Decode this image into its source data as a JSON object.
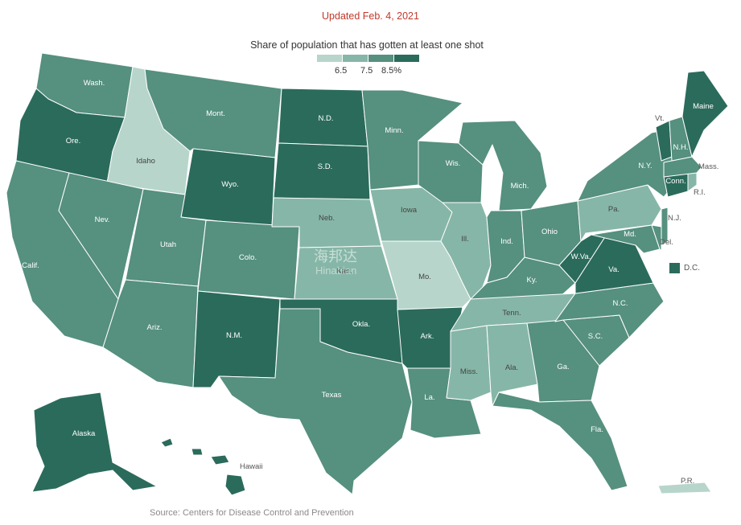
{
  "header": {
    "updated": "Updated Feb. 4, 2021",
    "legend_title": "Share of population that has gotten at least one shot",
    "legend_ticks": [
      "6.5",
      "7.5",
      "8.5%"
    ]
  },
  "colors": {
    "bin1": "#b7d5cb",
    "bin2": "#86b6a7",
    "bin3": "#56907f",
    "bin4": "#2b6b5b",
    "border": "#ffffff",
    "title": "#c0392b"
  },
  "states": [
    {
      "id": "wa",
      "label": "Wash.",
      "bin": 3
    },
    {
      "id": "or",
      "label": "Ore.",
      "bin": 4
    },
    {
      "id": "ca",
      "label": "Calif.",
      "bin": 3
    },
    {
      "id": "id",
      "label": "Idaho",
      "bin": 1
    },
    {
      "id": "nv",
      "label": "Nev.",
      "bin": 3
    },
    {
      "id": "mt",
      "label": "Mont.",
      "bin": 3
    },
    {
      "id": "wy",
      "label": "Wyo.",
      "bin": 4
    },
    {
      "id": "ut",
      "label": "Utah",
      "bin": 3
    },
    {
      "id": "az",
      "label": "Ariz.",
      "bin": 3
    },
    {
      "id": "co",
      "label": "Colo.",
      "bin": 3
    },
    {
      "id": "nm",
      "label": "N.M.",
      "bin": 4
    },
    {
      "id": "nd",
      "label": "N.D.",
      "bin": 4
    },
    {
      "id": "sd",
      "label": "S.D.",
      "bin": 4
    },
    {
      "id": "ne",
      "label": "Neb.",
      "bin": 2
    },
    {
      "id": "ks",
      "label": "Kan.",
      "bin": 2
    },
    {
      "id": "ok",
      "label": "Okla.",
      "bin": 4
    },
    {
      "id": "tx",
      "label": "Texas",
      "bin": 3
    },
    {
      "id": "mn",
      "label": "Minn.",
      "bin": 3
    },
    {
      "id": "ia",
      "label": "Iowa",
      "bin": 2
    },
    {
      "id": "mo",
      "label": "Mo.",
      "bin": 1
    },
    {
      "id": "ar",
      "label": "Ark.",
      "bin": 4
    },
    {
      "id": "la",
      "label": "La.",
      "bin": 3
    },
    {
      "id": "wi",
      "label": "Wis.",
      "bin": 3
    },
    {
      "id": "il",
      "label": "Ill.",
      "bin": 2
    },
    {
      "id": "ms",
      "label": "Miss.",
      "bin": 2
    },
    {
      "id": "mi",
      "label": "Mich.",
      "bin": 3
    },
    {
      "id": "in",
      "label": "Ind.",
      "bin": 3
    },
    {
      "id": "ky",
      "label": "Ky.",
      "bin": 3
    },
    {
      "id": "tn",
      "label": "Tenn.",
      "bin": 2
    },
    {
      "id": "al",
      "label": "Ala.",
      "bin": 2
    },
    {
      "id": "oh",
      "label": "Ohio",
      "bin": 3
    },
    {
      "id": "ga",
      "label": "Ga.",
      "bin": 3
    },
    {
      "id": "fl",
      "label": "Fla.",
      "bin": 3
    },
    {
      "id": "sc",
      "label": "S.C.",
      "bin": 3
    },
    {
      "id": "nc",
      "label": "N.C.",
      "bin": 3
    },
    {
      "id": "va",
      "label": "Va.",
      "bin": 4
    },
    {
      "id": "wv",
      "label": "W.Va.",
      "bin": 4
    },
    {
      "id": "pa",
      "label": "Pa.",
      "bin": 2
    },
    {
      "id": "ny",
      "label": "N.Y.",
      "bin": 3
    },
    {
      "id": "md",
      "label": "Md.",
      "bin": 3
    },
    {
      "id": "de",
      "label": "Del.",
      "bin": 3
    },
    {
      "id": "nj",
      "label": "N.J.",
      "bin": 3
    },
    {
      "id": "ct",
      "label": "Conn.",
      "bin": 4
    },
    {
      "id": "ri",
      "label": "R.I.",
      "bin": 2
    },
    {
      "id": "ma",
      "label": "Mass.",
      "bin": 3
    },
    {
      "id": "vt",
      "label": "Vt.",
      "bin": 4
    },
    {
      "id": "nh",
      "label": "N.H.",
      "bin": 3
    },
    {
      "id": "me",
      "label": "Maine",
      "bin": 4
    },
    {
      "id": "ak",
      "label": "Alaska",
      "bin": 4
    },
    {
      "id": "hi",
      "label": "Hawaii",
      "bin": 4
    },
    {
      "id": "pr",
      "label": "P.R.",
      "bin": 1
    }
  ],
  "dc": {
    "label": "D.C.",
    "bin": 4
  },
  "watermark": {
    "text": "海邦达",
    "sub": "Hinabian"
  },
  "footer": {
    "source": "Source: Centers for Disease Control and Prevention"
  }
}
